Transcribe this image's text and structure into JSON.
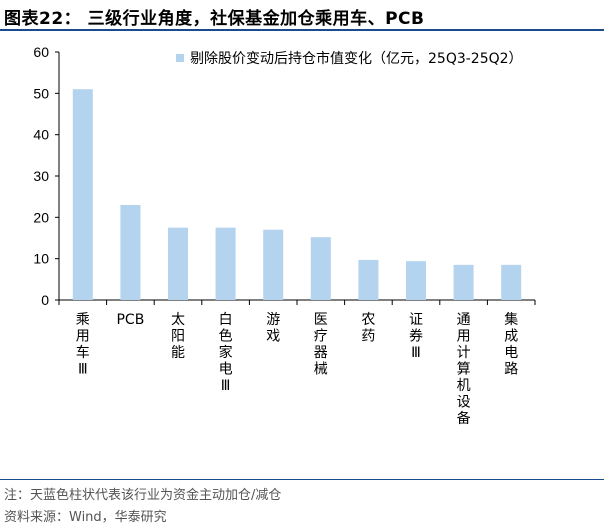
{
  "figure": {
    "title": "图表22：  三级行业角度，社保基金加仓乘用车、PCB"
  },
  "chart_data": {
    "type": "bar",
    "categories": [
      "乘用车Ⅲ",
      "PCB",
      "太阳能",
      "白色家电Ⅲ",
      "游戏",
      "医疗器械",
      "农药",
      "证券Ⅲ",
      "通用计算机设备",
      "集成电路"
    ],
    "series": [
      {
        "name": "剔除股价变动后持仓市值变化（亿元，25Q3-25Q2）",
        "values": [
          51,
          23,
          17.5,
          17.5,
          17,
          15.2,
          9.7,
          9.4,
          8.5,
          8.5
        ]
      }
    ],
    "ylim": [
      0,
      60
    ],
    "yticks": [
      0,
      10,
      20,
      30,
      40,
      50,
      60
    ],
    "legend_position": "top-right",
    "grid": false,
    "bar_color": "#b3d3ef"
  },
  "footer": {
    "note": "注：天蓝色柱状代表该行业为资金主动加仓/减仓",
    "source": "资料来源：Wind，华泰研究"
  }
}
